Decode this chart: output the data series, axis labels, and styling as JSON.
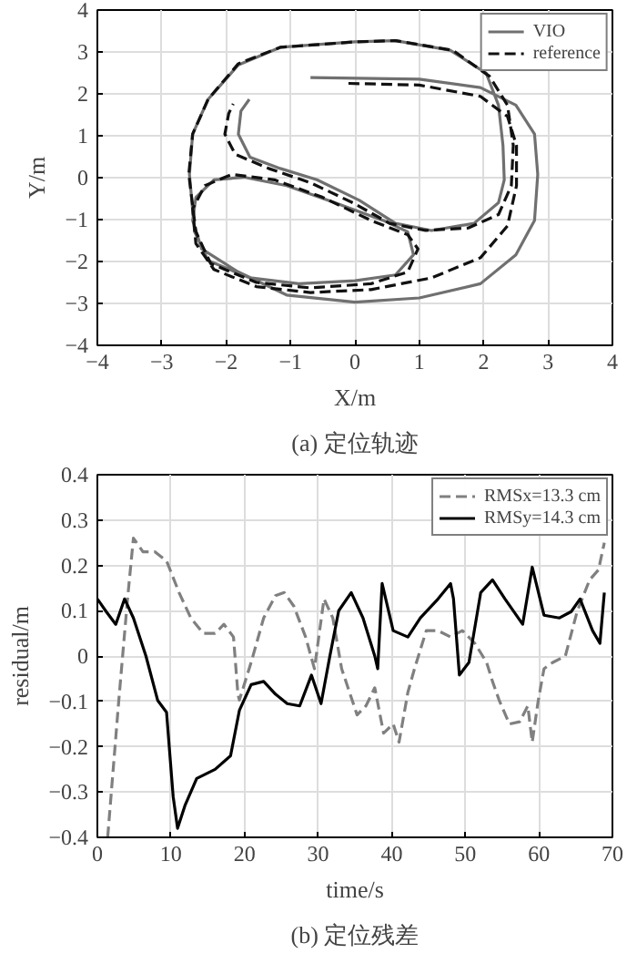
{
  "chart_data": [
    {
      "type": "line",
      "title": "(a) 定位轨迹",
      "xlabel": "X/m",
      "ylabel": "Y/m",
      "xlim": [
        -4,
        4
      ],
      "ylim": [
        -4,
        4
      ],
      "xticks": [
        -4,
        -3,
        -2,
        -1,
        0,
        1,
        2,
        3,
        4
      ],
      "yticks": [
        -4,
        -3,
        -2,
        -1,
        0,
        1,
        2,
        3,
        4
      ],
      "grid": true,
      "legend": "top right",
      "series": [
        {
          "name": "VIO",
          "color": "#707070",
          "line_style": "solid",
          "x": [
            -0.69,
            1.0,
            1.95,
            2.5,
            2.79,
            2.84,
            2.79,
            2.5,
            1.95,
            1.0,
            0,
            -1.06,
            -1.81,
            -2.38,
            -2.52,
            -2.47,
            -2.19,
            -1.72,
            -1.06,
            -0.31,
            0.44,
            0.82,
            0.91,
            0.63,
            0,
            -0.87,
            -1.63,
            -2.28,
            -2.49,
            -2.57,
            -2.52,
            -2.28,
            -1.81,
            -1.16,
            0,
            0.63,
            1.48,
            2.04,
            2.23,
            2.3,
            2.32,
            2.23,
            1.85,
            1.19,
            0.63,
            0.07,
            -0.59,
            -1.16,
            -1.63,
            -1.81,
            -1.77,
            -1.64
          ],
          "values": [
            2.39,
            2.35,
            2.15,
            1.73,
            1.04,
            0.08,
            -1.02,
            -1.84,
            -2.53,
            -2.87,
            -2.97,
            -2.8,
            -2.25,
            -1.7,
            -1.02,
            -0.47,
            -0.05,
            0.01,
            -0.19,
            -0.6,
            -1.02,
            -1.29,
            -1.84,
            -2.32,
            -2.46,
            -2.53,
            -2.39,
            -1.98,
            -1.29,
            0.08,
            1.04,
            1.87,
            2.69,
            3.11,
            3.24,
            3.27,
            3.04,
            2.49,
            1.73,
            0.77,
            -0.05,
            -0.6,
            -1.09,
            -1.26,
            -1.09,
            -0.54,
            -0.05,
            0.22,
            0.49,
            1.04,
            1.59,
            1.87
          ]
        },
        {
          "name": "reference",
          "color": "#111111",
          "line_style": "dashed",
          "x": [
            -0.1,
            1.0,
            1.95,
            2.37,
            2.51,
            2.51,
            2.37,
            1.95,
            1.19,
            0.25,
            -0.69,
            -1.53,
            -2.19,
            -2.47,
            -2.52,
            -2.33,
            -1.91,
            -1.25,
            -0.5,
            0.25,
            0.82,
            0.98,
            0.82,
            0.25,
            -0.69,
            -1.53,
            -2.24,
            -2.47,
            -2.58,
            -2.52,
            -2.28,
            -1.81,
            -1.16,
            0,
            0.63,
            1.52,
            2.09,
            2.37,
            2.46,
            2.43,
            2.23,
            1.76,
            1.1,
            0.54,
            -0.03,
            -0.69,
            -1.34,
            -1.86,
            -2.02,
            -1.96,
            -1.89
          ],
          "values": [
            2.25,
            2.21,
            1.94,
            1.46,
            0.77,
            -0.19,
            -1.15,
            -1.91,
            -2.39,
            -2.67,
            -2.74,
            -2.6,
            -2.19,
            -1.57,
            -0.74,
            -0.19,
            0.08,
            -0.05,
            -0.47,
            -1.02,
            -1.36,
            -1.7,
            -2.25,
            -2.53,
            -2.63,
            -2.5,
            -2.05,
            -1.29,
            0.08,
            1.04,
            1.87,
            2.72,
            3.11,
            3.24,
            3.27,
            3.04,
            2.42,
            1.73,
            0.77,
            -0.19,
            -0.88,
            -1.2,
            -1.26,
            -1.09,
            -0.6,
            -0.12,
            0.22,
            0.56,
            1.04,
            1.53,
            1.76
          ]
        }
      ]
    },
    {
      "type": "line",
      "title": "(b) 定位残差",
      "xlabel": "time/s",
      "ylabel": "residual/m",
      "xlim": [
        0,
        70
      ],
      "ylim": [
        -0.4,
        0.4
      ],
      "xticks": [
        0,
        10,
        20,
        30,
        40,
        50,
        60,
        70
      ],
      "yticks": [
        -0.4,
        -0.3,
        -0.2,
        -0.1,
        0,
        0.1,
        0.2,
        0.3,
        0.4
      ],
      "grid": true,
      "legend": "top right",
      "series": [
        {
          "name": "RMSx=13.3 cm",
          "color": "#808080",
          "line_style": "dashed",
          "x": [
            1.4,
            2.9,
            4.1,
            4.9,
            6.2,
            7.8,
            9.4,
            11.1,
            12.7,
            14.4,
            16,
            17.2,
            18.5,
            19.1,
            19.3,
            20.9,
            22.6,
            24.2,
            25.4,
            26.7,
            28.3,
            29.5,
            30.8,
            32,
            33.2,
            35.3,
            36.5,
            37.7,
            38.9,
            40.2,
            41,
            42.2,
            43.1,
            44.7,
            46.3,
            48,
            49.6,
            51.3,
            52.9,
            53.7,
            54.6,
            56,
            57.4,
            58.5,
            59.1,
            59.9,
            60.7,
            61.9,
            63.6,
            65.2,
            66.9,
            68.1,
            68.9
          ],
          "values": [
            -0.4,
            -0.1,
            0.126,
            0.26,
            0.23,
            0.23,
            0.21,
            0.14,
            0.084,
            0.05,
            0.05,
            0.07,
            0.042,
            -0.084,
            -0.097,
            -0.014,
            0.084,
            0.133,
            0.14,
            0.11,
            0.042,
            -0.028,
            0.126,
            0.084,
            -0.028,
            -0.13,
            -0.11,
            -0.07,
            -0.17,
            -0.15,
            -0.19,
            -0.08,
            -0.028,
            0.056,
            0.056,
            0.042,
            0.056,
            0.028,
            -0.014,
            -0.056,
            -0.097,
            -0.15,
            -0.145,
            -0.11,
            -0.19,
            -0.1,
            -0.028,
            -0.014,
            0,
            0.098,
            0.168,
            0.19,
            0.25
          ]
        },
        {
          "name": "RMSy=14.3 cm",
          "color": "#000000",
          "line_style": "solid",
          "x": [
            0,
            1.2,
            2.5,
            3.7,
            4.9,
            6.6,
            8.2,
            9.4,
            10.3,
            10.9,
            11.9,
            13.5,
            16,
            18.1,
            19.3,
            20.9,
            22.6,
            24.2,
            25.8,
            27.5,
            29.1,
            30.4,
            31.6,
            32.8,
            34.5,
            36.1,
            37.7,
            38.1,
            38.7,
            40.2,
            42.2,
            43.9,
            46.3,
            48,
            48.4,
            49.2,
            50.5,
            52.1,
            53.7,
            55.4,
            57.8,
            59.1,
            60.7,
            62.8,
            64.4,
            65.6,
            67.3,
            68.3,
            68.9
          ],
          "values": [
            0.126,
            0.098,
            0.07,
            0.126,
            0.084,
            0,
            -0.098,
            -0.124,
            -0.31,
            -0.38,
            -0.33,
            -0.27,
            -0.25,
            -0.22,
            -0.12,
            -0.063,
            -0.056,
            -0.084,
            -0.105,
            -0.11,
            -0.042,
            -0.105,
            0,
            0.1,
            0.14,
            0.084,
            0,
            -0.028,
            0.16,
            0.056,
            0.042,
            0.084,
            0.126,
            0.16,
            0.126,
            -0.042,
            -0.014,
            0.14,
            0.168,
            0.126,
            0.07,
            0.196,
            0.09,
            0.084,
            0.098,
            0.126,
            0.056,
            0.028,
            0.14
          ]
        }
      ]
    }
  ]
}
